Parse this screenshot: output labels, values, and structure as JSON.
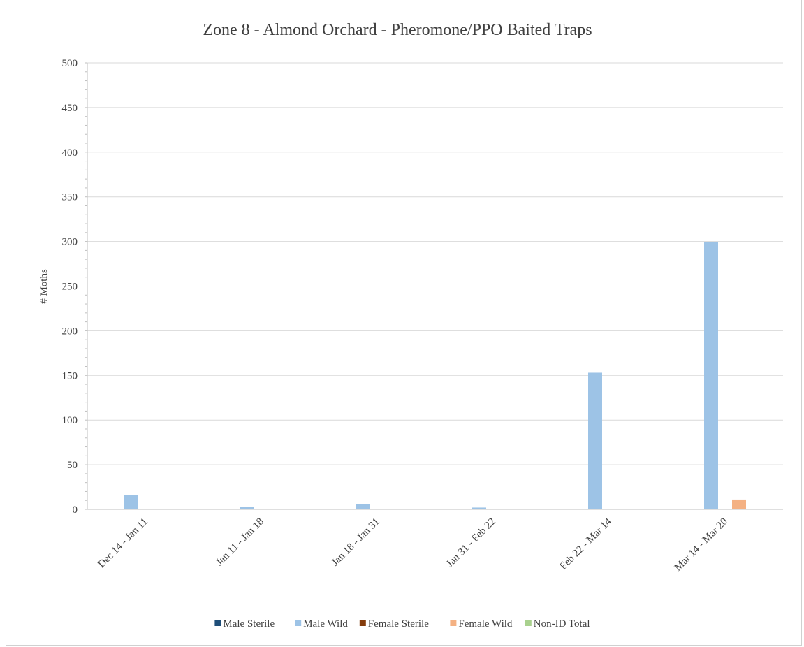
{
  "chart_data": {
    "type": "bar",
    "title": "Zone 8 - Almond Orchard - Pheromone/PPO Baited Traps",
    "xlabel": "",
    "ylabel": "# Moths",
    "ylim": [
      0,
      500
    ],
    "yticks": [
      0,
      50,
      100,
      150,
      200,
      250,
      300,
      350,
      400,
      450,
      500
    ],
    "grid": true,
    "legend_position": "bottom",
    "categories": [
      "Dec 14 - Jan 11",
      "Jan 11 - Jan 18",
      "Jan 18 - Jan 31",
      "Jan 31 - Feb 22",
      "Feb 22 - Mar 14",
      "Mar 14 - Mar 20"
    ],
    "series": [
      {
        "name": "Male Sterile",
        "color": "#1f4e79",
        "values": [
          0,
          0,
          0,
          0,
          0,
          0
        ]
      },
      {
        "name": "Male Wild",
        "color": "#9dc3e6",
        "values": [
          16,
          3,
          6,
          2,
          153,
          299
        ]
      },
      {
        "name": "Female Sterile",
        "color": "#843c0c",
        "values": [
          0,
          0,
          0,
          0,
          0,
          0
        ]
      },
      {
        "name": "Female Wild",
        "color": "#f4b183",
        "values": [
          0,
          0,
          0,
          0,
          0,
          11
        ]
      },
      {
        "name": "Non-ID Total",
        "color": "#a9d18e",
        "values": [
          0,
          0,
          0,
          0,
          0,
          0
        ]
      }
    ]
  }
}
